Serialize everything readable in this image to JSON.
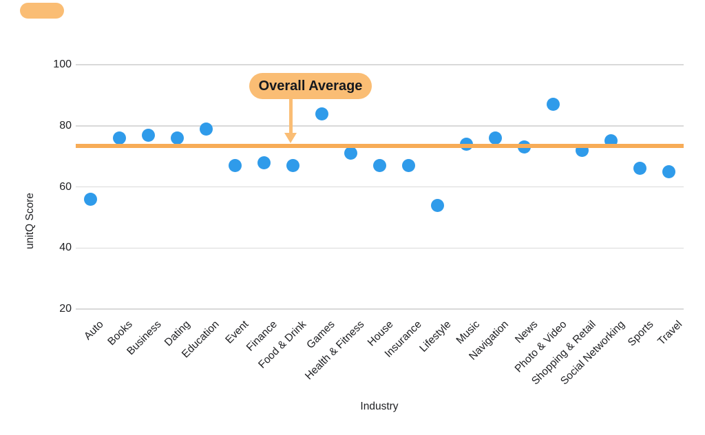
{
  "chart_data": {
    "type": "scatter",
    "categories": [
      "Auto",
      "Books",
      "Business",
      "Dating",
      "Education",
      "Event",
      "Finance",
      "Food & Drink",
      "Games",
      "Health & Fitness",
      "House",
      "Insurance",
      "Lifestyle",
      "Music",
      "Navigation",
      "News",
      "Photo & Video",
      "Shopping & Retail",
      "Social Networking",
      "Sports",
      "Travel"
    ],
    "values": [
      56,
      76,
      77,
      76,
      79,
      67,
      68,
      67,
      84,
      71,
      67,
      67,
      54,
      74,
      76,
      73,
      87,
      72,
      75,
      66,
      65
    ],
    "xlabel": "Industry",
    "ylabel": "unitQ Score",
    "ylim": [
      20,
      100
    ],
    "y_ticks": [
      20,
      40,
      60,
      80,
      100
    ],
    "grid": true,
    "legend": "none",
    "average_line": {
      "value": 73.4,
      "label": "Overall Average"
    },
    "colors": {
      "point": "#2F9BEA",
      "average_line": "#F7AC57",
      "annotation_bg": "#FABD74",
      "annotation_text": "#15191F",
      "grid": "#D9D9D9",
      "tick_text": "#202124"
    }
  }
}
